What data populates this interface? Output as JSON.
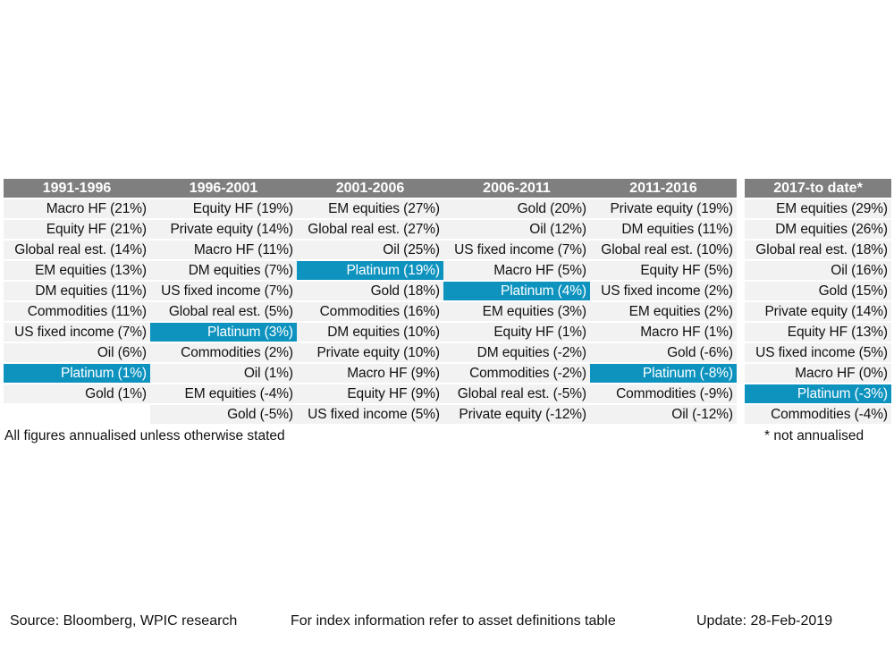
{
  "chart_data": {
    "type": "table",
    "highlight_asset": "Platinum",
    "colors": {
      "header_bg": "#7f7f7f",
      "cell_bg": "#f2f2f2",
      "highlight_bg": "#0e93bf"
    },
    "columns": [
      {
        "header": "1991-1996",
        "rows": [
          "Macro HF (21%)",
          "Equity HF (21%)",
          "Global real est. (14%)",
          "EM equities (13%)",
          "DM equities (11%)",
          "Commodities (11%)",
          "US fixed income (7%)",
          "Oil (6%)",
          "Platinum (1%)",
          "Gold (1%)",
          ""
        ]
      },
      {
        "header": "1996-2001",
        "rows": [
          "Equity HF (19%)",
          "Private equity (14%)",
          "Macro HF (11%)",
          "DM equities (7%)",
          "US fixed income (7%)",
          "Global real est. (5%)",
          "Platinum (3%)",
          "Commodities (2%)",
          "Oil (1%)",
          "EM equities (-4%)",
          "Gold (-5%)"
        ]
      },
      {
        "header": "2001-2006",
        "rows": [
          "EM equities (27%)",
          "Global real est. (27%)",
          "Oil (25%)",
          "Platinum (19%)",
          "Gold (18%)",
          "Commodities (16%)",
          "DM equities (10%)",
          "Private equity (10%)",
          "Macro HF (9%)",
          "Equity HF (9%)",
          "US fixed income (5%)"
        ]
      },
      {
        "header": "2006-2011",
        "rows": [
          "Gold (20%)",
          "Oil (12%)",
          "US fixed income (7%)",
          "Macro HF (5%)",
          "Platinum (4%)",
          "EM equities (3%)",
          "Equity HF (1%)",
          "DM equities (-2%)",
          "Commodities (-2%)",
          "Global real est. (-5%)",
          "Private equity (-12%)"
        ]
      },
      {
        "header": "2011-2016",
        "rows": [
          "Private equity (19%)",
          "DM equities (11%)",
          "Global real est. (10%)",
          "Equity HF (5%)",
          "US fixed income (2%)",
          "EM equities (2%)",
          "Macro HF (1%)",
          "Gold (-6%)",
          "Platinum (-8%)",
          "Commodities (-9%)",
          "Oil (-12%)"
        ]
      },
      {
        "header": "2017-to date*",
        "rows": [
          "EM equities (29%)",
          "DM equities (26%)",
          "Global real est. (18%)",
          "Oil (16%)",
          "Gold (15%)",
          "Private equity (14%)",
          "Equity HF (13%)",
          "US fixed income (5%)",
          "Macro HF (0%)",
          "Platinum (-3%)",
          "Commodities (-4%)"
        ]
      }
    ],
    "notes": {
      "left": "All figures annualised unless otherwise stated",
      "right": "* not annualised"
    }
  },
  "footer": {
    "source": "Source: Bloomberg, WPIC research",
    "index_info": "For index information refer to asset definitions table",
    "update": "Update: 28-Feb-2019"
  }
}
